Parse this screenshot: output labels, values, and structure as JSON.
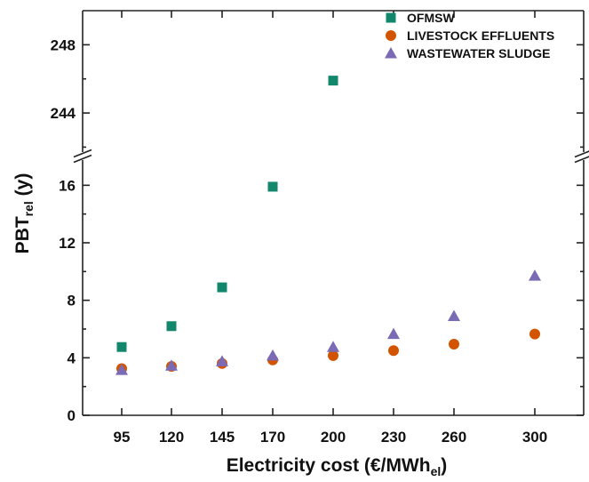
{
  "chart_data": {
    "type": "scatter",
    "xlabel": "Electricity cost (€/MWh",
    "xlabel_sub": "el",
    "xlabel_end": ")",
    "ylabel": "PBT",
    "ylabel_sub": "rel",
    "ylabel_end": " (y)",
    "categories": [
      "95",
      "120",
      "145",
      "170",
      "200",
      "230",
      "260",
      "300"
    ],
    "x_values": [
      95,
      120,
      145,
      170,
      200,
      230,
      260,
      300
    ],
    "y_axis_lower": {
      "range": [
        0,
        18
      ],
      "ticks": [
        0,
        4,
        8,
        12,
        16
      ]
    },
    "y_axis_upper": {
      "range": [
        241.5,
        250
      ],
      "ticks": [
        244,
        248
      ]
    },
    "axis_break": true,
    "legend_position": "top-right",
    "series": [
      {
        "name": "OFMSW",
        "marker": "square",
        "color": "#13876c",
        "points": [
          [
            95,
            4.75
          ],
          [
            120,
            6.2
          ],
          [
            145,
            8.9
          ],
          [
            170,
            15.9
          ],
          [
            200,
            245.9
          ]
        ]
      },
      {
        "name": "LIVESTOCK EFFLUENTS",
        "marker": "circle",
        "color": "#d35400",
        "points": [
          [
            95,
            3.25
          ],
          [
            120,
            3.4
          ],
          [
            145,
            3.6
          ],
          [
            170,
            3.85
          ],
          [
            200,
            4.15
          ],
          [
            230,
            4.5
          ],
          [
            260,
            4.95
          ],
          [
            300,
            5.65
          ]
        ]
      },
      {
        "name": "WASTEWATER SLUDGE",
        "marker": "triangle",
        "color": "#7b6bb5",
        "points": [
          [
            95,
            3.15
          ],
          [
            120,
            3.45
          ],
          [
            145,
            3.75
          ],
          [
            170,
            4.15
          ],
          [
            200,
            4.75
          ],
          [
            230,
            5.65
          ],
          [
            260,
            6.9
          ],
          [
            300,
            9.7
          ]
        ]
      }
    ]
  }
}
